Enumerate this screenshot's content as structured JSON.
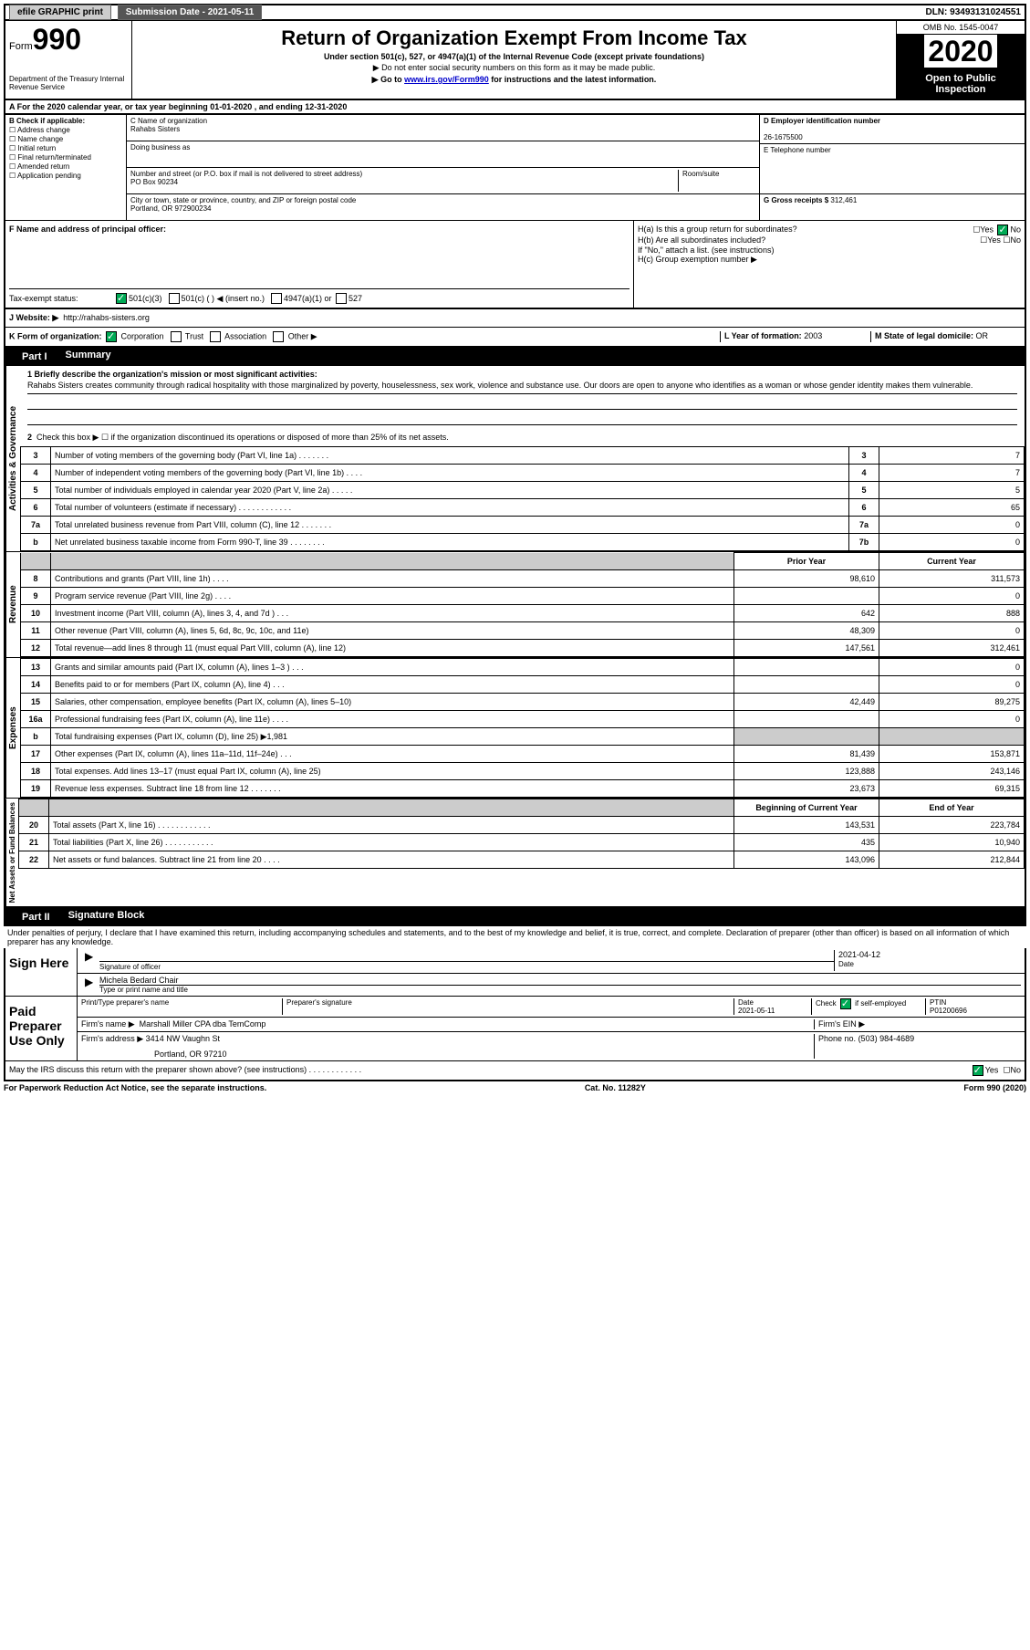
{
  "top_bar": {
    "efile_label": "efile GRAPHIC print",
    "submission_label": "Submission Date - 2021-05-11",
    "dln": "DLN: 93493131024551"
  },
  "header": {
    "form_label": "Form",
    "form_number": "990",
    "dept": "Department of the Treasury\nInternal Revenue Service",
    "title": "Return of Organization Exempt From Income Tax",
    "subtitle": "Under section 501(c), 527, or 4947(a)(1) of the Internal Revenue Code (except private foundations)",
    "warn1": "▶ Do not enter social security numbers on this form as it may be made public.",
    "warn2_pre": "▶ Go to ",
    "warn2_link": "www.irs.gov/Form990",
    "warn2_post": " for instructions and the latest information.",
    "omb": "OMB No. 1545-0047",
    "year": "2020",
    "open_public": "Open to Public Inspection"
  },
  "row_a": "A For the 2020 calendar year, or tax year beginning 01-01-2020     , and ending 12-31-2020",
  "section_b": {
    "label": "B Check if applicable:",
    "items": [
      "Address change",
      "Name change",
      "Initial return",
      "Final return/terminated",
      "Amended return",
      "Application pending"
    ]
  },
  "section_c": {
    "name_label": "C Name of organization",
    "name": "Rahabs Sisters",
    "dba_label": "Doing business as",
    "addr_label": "Number and street (or P.O. box if mail is not delivered to street address)",
    "room_label": "Room/suite",
    "addr": "PO Box 90234",
    "city_label": "City or town, state or province, country, and ZIP or foreign postal code",
    "city": "Portland, OR  972900234"
  },
  "section_d": {
    "ein_label": "D Employer identification number",
    "ein": "26-1675500",
    "phone_label": "E Telephone number",
    "gross_label": "G Gross receipts $",
    "gross": "312,461"
  },
  "section_f": {
    "label": "F  Name and address of principal officer:"
  },
  "section_h": {
    "ha": "H(a)  Is this a group return for subordinates?",
    "hb": "H(b)  Are all subordinates included?",
    "hb_note": "If \"No,\" attach a list. (see instructions)",
    "hc": "H(c)  Group exemption number ▶",
    "yes": "Yes",
    "no": "No"
  },
  "tax_status": {
    "label": "Tax-exempt status:",
    "opt1": "501(c)(3)",
    "opt2": "501(c) (  ) ◀ (insert no.)",
    "opt3": "4947(a)(1) or",
    "opt4": "527"
  },
  "row_j": {
    "label": "J   Website: ▶",
    "url": "http://rahabs-sisters.org"
  },
  "row_k": {
    "label": "K Form of organization:",
    "corp": "Corporation",
    "trust": "Trust",
    "assoc": "Association",
    "other": "Other ▶",
    "l_label": "L Year of formation:",
    "l_val": "2003",
    "m_label": "M State of legal domicile:",
    "m_val": "OR"
  },
  "part1": {
    "tab": "Part I",
    "title": "Summary",
    "mission_label": "1  Briefly describe the organization's mission or most significant activities:",
    "mission": "Rahabs Sisters creates community through radical hospitality with those marginalized by poverty, houselessness, sex work, violence and substance use. Our doors are open to anyone who identifies as a woman or whose gender identity makes them vulnerable.",
    "line2": "Check this box ▶ ☐  if the organization discontinued its operations or disposed of more than 25% of its net assets.",
    "groups": {
      "gov": "Activities & Governance",
      "rev": "Revenue",
      "exp": "Expenses",
      "net": "Net Assets or Fund Balances"
    },
    "col_prior": "Prior Year",
    "col_current": "Current Year",
    "col_begin": "Beginning of Current Year",
    "col_end": "End of Year",
    "rows_gov": [
      {
        "n": "3",
        "t": "Number of voting members of the governing body (Part VI, line 1a)   .    .    .    .    .    .    .",
        "box": "3",
        "v": "7"
      },
      {
        "n": "4",
        "t": "Number of independent voting members of the governing body (Part VI, line 1b)  .    .    .    .",
        "box": "4",
        "v": "7"
      },
      {
        "n": "5",
        "t": "Total number of individuals employed in calendar year 2020 (Part V, line 2a)   .    .    .    .    .",
        "box": "5",
        "v": "5"
      },
      {
        "n": "6",
        "t": "Total number of volunteers (estimate if necessary)    .    .    .    .    .    .    .    .    .    .    .    .",
        "box": "6",
        "v": "65"
      },
      {
        "n": "7a",
        "t": "Total unrelated business revenue from Part VIII, column (C), line 12  .    .    .    .    .    .    .",
        "box": "7a",
        "v": "0"
      },
      {
        "n": "b",
        "t": "Net unrelated business taxable income from Form 990-T, line 39    .    .    .    .    .    .    .    .",
        "box": "7b",
        "v": "0"
      }
    ],
    "rows_rev": [
      {
        "n": "8",
        "t": "Contributions and grants (Part VIII, line 1h)    .    .    .    .",
        "p": "98,610",
        "c": "311,573"
      },
      {
        "n": "9",
        "t": "Program service revenue (Part VIII, line 2g)    .    .    .    .",
        "p": "",
        "c": "0"
      },
      {
        "n": "10",
        "t": "Investment income (Part VIII, column (A), lines 3, 4, and 7d )    .    .    .",
        "p": "642",
        "c": "888"
      },
      {
        "n": "11",
        "t": "Other revenue (Part VIII, column (A), lines 5, 6d, 8c, 9c, 10c, and 11e)",
        "p": "48,309",
        "c": "0"
      },
      {
        "n": "12",
        "t": "Total revenue—add lines 8 through 11 (must equal Part VIII, column (A), line 12)",
        "p": "147,561",
        "c": "312,461"
      }
    ],
    "rows_exp": [
      {
        "n": "13",
        "t": "Grants and similar amounts paid (Part IX, column (A), lines 1–3 )   .    .    .",
        "p": "",
        "c": "0"
      },
      {
        "n": "14",
        "t": "Benefits paid to or for members (Part IX, column (A), line 4)   .    .    .",
        "p": "",
        "c": "0"
      },
      {
        "n": "15",
        "t": "Salaries, other compensation, employee benefits (Part IX, column (A), lines 5–10)",
        "p": "42,449",
        "c": "89,275"
      },
      {
        "n": "16a",
        "t": "Professional fundraising fees (Part IX, column (A), line 11e)   .    .    .    .",
        "p": "",
        "c": "0"
      },
      {
        "n": "b",
        "t": "Total fundraising expenses (Part IX, column (D), line 25) ▶1,981",
        "p": "shaded",
        "c": "shaded"
      },
      {
        "n": "17",
        "t": "Other expenses (Part IX, column (A), lines 11a–11d, 11f–24e)   .    .    .",
        "p": "81,439",
        "c": "153,871"
      },
      {
        "n": "18",
        "t": "Total expenses. Add lines 13–17 (must equal Part IX, column (A), line 25)",
        "p": "123,888",
        "c": "243,146"
      },
      {
        "n": "19",
        "t": "Revenue less expenses. Subtract line 18 from line 12 .    .    .    .    .    .    .",
        "p": "23,673",
        "c": "69,315"
      }
    ],
    "rows_net": [
      {
        "n": "20",
        "t": "Total assets (Part X, line 16)  .    .    .    .    .    .    .    .    .    .    .    .",
        "p": "143,531",
        "c": "223,784"
      },
      {
        "n": "21",
        "t": "Total liabilities (Part X, line 26)  .    .    .    .    .    .    .    .    .    .    .",
        "p": "435",
        "c": "10,940"
      },
      {
        "n": "22",
        "t": "Net assets or fund balances. Subtract line 21 from line 20   .    .    .    .",
        "p": "143,096",
        "c": "212,844"
      }
    ]
  },
  "part2": {
    "tab": "Part II",
    "title": "Signature Block",
    "penalty": "Under penalties of perjury, I declare that I have examined this return, including accompanying schedules and statements, and to the best of my knowledge and belief, it is true, correct, and complete. Declaration of preparer (other than officer) is based on all information of which preparer has any knowledge.",
    "sign_here": "Sign Here",
    "sig_officer": "Signature of officer",
    "sig_date": "2021-04-12",
    "date_label": "Date",
    "typed_name": "Michela Bedard Chair",
    "typed_label": "Type or print name and title",
    "paid_label": "Paid Preparer Use Only",
    "prep_name_label": "Print/Type preparer's name",
    "prep_sig_label": "Preparer's signature",
    "prep_date": "2021-05-11",
    "check_self": "Check ☑ if self-employed",
    "ptin_label": "PTIN",
    "ptin": "P01200696",
    "firm_name_label": "Firm's name    ▶",
    "firm_name": "Marshall Miller CPA dba TemComp",
    "firm_ein_label": "Firm's EIN ▶",
    "firm_addr_label": "Firm's address ▶",
    "firm_addr1": "3414 NW Vaughn St",
    "firm_addr2": "Portland, OR  97210",
    "firm_phone_label": "Phone no.",
    "firm_phone": "(503) 984-4689",
    "discuss": "May the IRS discuss this return with the preparer shown above? (see instructions)    .    .    .    .    .    .    .    .    .    .    .    ."
  },
  "footer": {
    "left": "For Paperwork Reduction Act Notice, see the separate instructions.",
    "center": "Cat. No. 11282Y",
    "right": "Form 990 (2020)"
  }
}
